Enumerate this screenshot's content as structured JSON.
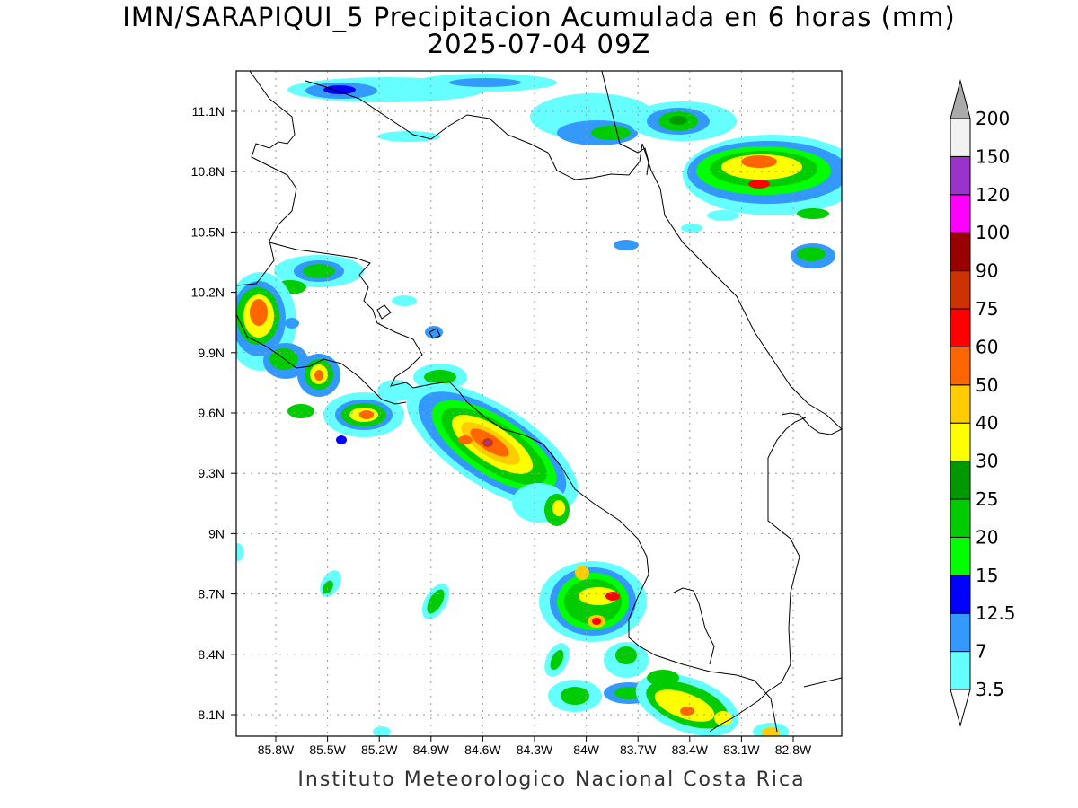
{
  "title": {
    "line1": "IMN/SARAPIQUI_5 Precipitacion Acumulada en 6 horas (mm)",
    "line2": "2025-07-04 09Z"
  },
  "footer": "Instituto Meteorologico Nacional Costa Rica",
  "axes": {
    "lat_labels": [
      "11.1N",
      "10.8N",
      "10.5N",
      "10.2N",
      "9.9N",
      "9.6N",
      "9.3N",
      "9N",
      "8.7N",
      "8.4N",
      "8.1N"
    ],
    "lon_labels": [
      "85.8W",
      "85.5W",
      "85.2W",
      "84.9W",
      "84.6W",
      "84.3W",
      "84W",
      "83.7W",
      "83.4W",
      "83.1W",
      "82.8W"
    ]
  },
  "colorbar": {
    "levels": [
      "3.5",
      "7",
      "12.5",
      "15",
      "20",
      "25",
      "30",
      "40",
      "50",
      "60",
      "75",
      "90",
      "100",
      "120",
      "150",
      "200"
    ],
    "colors": [
      "#66ffff",
      "#3399ff",
      "#0000ff",
      "#00ff00",
      "#00cc00",
      "#009900",
      "#ffff00",
      "#ffcc00",
      "#ff6600",
      "#ff0000",
      "#cc3300",
      "#990000",
      "#ff00ff",
      "#9933cc",
      "#f2f2f2",
      "#aaaaaa"
    ]
  }
}
